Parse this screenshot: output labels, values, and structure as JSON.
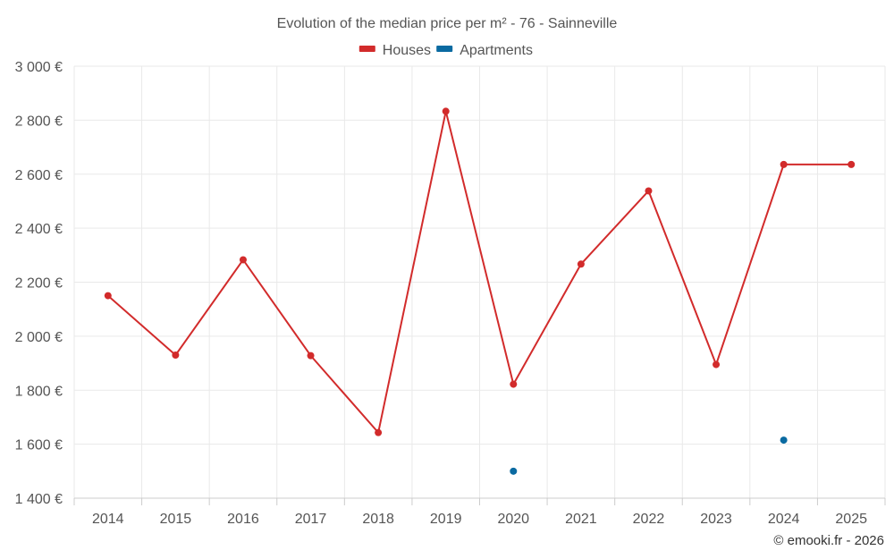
{
  "chart_data": {
    "type": "line",
    "title": "Evolution of the median price per m² - 76 - Sainneville",
    "categories": [
      "2014",
      "2015",
      "2016",
      "2017",
      "2018",
      "2019",
      "2020",
      "2021",
      "2022",
      "2023",
      "2024",
      "2025"
    ],
    "series": [
      {
        "name": "Houses",
        "color": "#d22b2b",
        "values": [
          2150,
          1930,
          2283,
          1928,
          1643,
          2833,
          1822,
          2267,
          2538,
          1895,
          2636,
          2636
        ]
      },
      {
        "name": "Apartments",
        "color": "#0a6aa1",
        "values": [
          null,
          null,
          null,
          null,
          null,
          null,
          1500,
          null,
          null,
          null,
          1615,
          null
        ]
      }
    ],
    "ylim": [
      1400,
      3000
    ],
    "yticks": [
      1400,
      1600,
      1800,
      2000,
      2200,
      2400,
      2600,
      2800,
      3000
    ],
    "ytick_labels": [
      "1 400 €",
      "1 600 €",
      "1 800 €",
      "2 000 €",
      "2 200 €",
      "2 400 €",
      "2 600 €",
      "2 800 €",
      "3 000 €"
    ],
    "grid": true,
    "legend_position": "top-center"
  },
  "credit": "© emooki.fr - 2026"
}
